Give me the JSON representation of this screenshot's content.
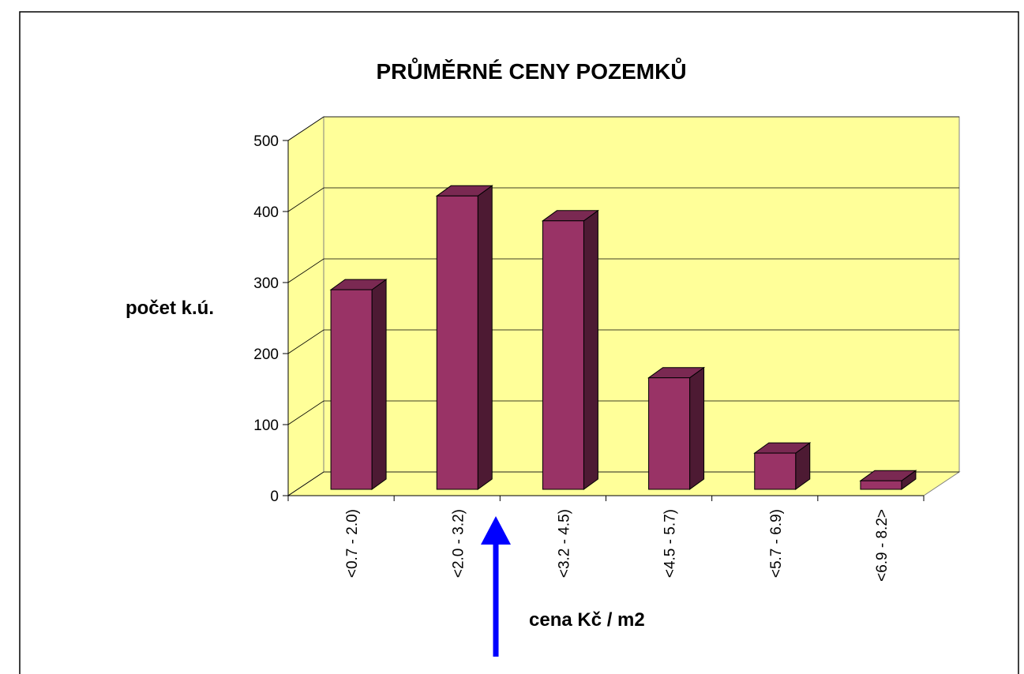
{
  "chart_data": {
    "type": "bar",
    "title": "PRŮMĚRNÉ CENY POZEMKŮ",
    "y_label": "počet k.ú.",
    "x_label": "cena Kč / m2",
    "categories": [
      "<0.7 - 2.0)",
      "<2.0 - 3.2)",
      "<3.2 - 4.5)",
      "<4.5 - 5.7)",
      "<5.7 - 6.9)",
      "<6.9 - 8.2>"
    ],
    "values": [
      281,
      413,
      378,
      157,
      51,
      12
    ],
    "color": "#993366",
    "ylim": [
      0,
      500
    ],
    "yticks": [
      0,
      100,
      200,
      300,
      400,
      500
    ],
    "grid": true
  }
}
